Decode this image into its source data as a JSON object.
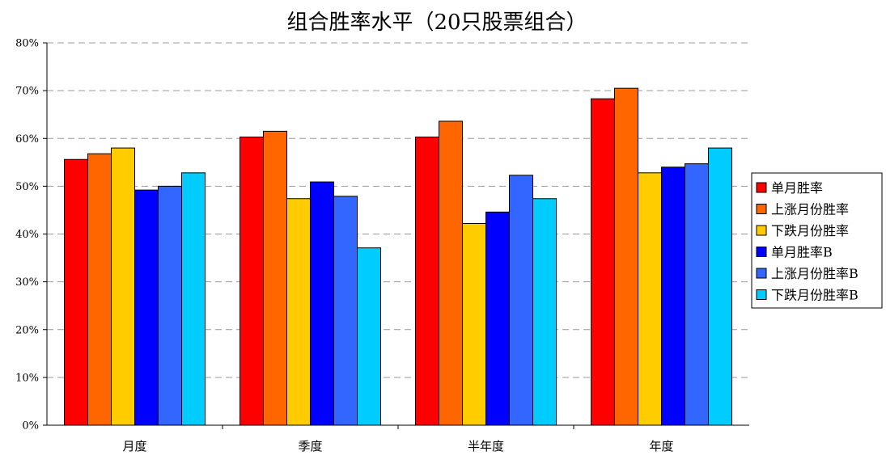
{
  "chart_data": {
    "type": "bar",
    "title": "组合胜率水平（20只股票组合）",
    "xlabel": "",
    "ylabel": "",
    "ylim": [
      0,
      80
    ],
    "yticks": [
      0,
      10,
      20,
      30,
      40,
      50,
      60,
      70,
      80
    ],
    "ytick_labels": [
      "0%",
      "10%",
      "20%",
      "30%",
      "40%",
      "50%",
      "60%",
      "70%",
      "80%"
    ],
    "grid": "horizontal-dashed",
    "legend_position": "right",
    "categories": [
      "月度",
      "季度",
      "半年度",
      "年度"
    ],
    "series": [
      {
        "name": "单月胜率",
        "color": "#ff0000",
        "values": [
          55.6,
          60.3,
          60.3,
          68.3
        ]
      },
      {
        "name": "上涨月份胜率",
        "color": "#ff6600",
        "values": [
          56.8,
          61.5,
          63.6,
          70.5
        ]
      },
      {
        "name": "下跌月份胜率",
        "color": "#ffcc00",
        "values": [
          58.0,
          47.4,
          42.2,
          52.8
        ]
      },
      {
        "name": "单月胜率B",
        "color": "#0000ff",
        "values": [
          49.2,
          50.9,
          44.6,
          54.0
        ]
      },
      {
        "name": "上涨月份胜率B",
        "color": "#3366ff",
        "values": [
          50.0,
          47.9,
          52.3,
          54.7
        ]
      },
      {
        "name": "下跌月份胜率B",
        "color": "#00ccff",
        "values": [
          52.8,
          37.1,
          47.4,
          58.0
        ]
      }
    ]
  }
}
